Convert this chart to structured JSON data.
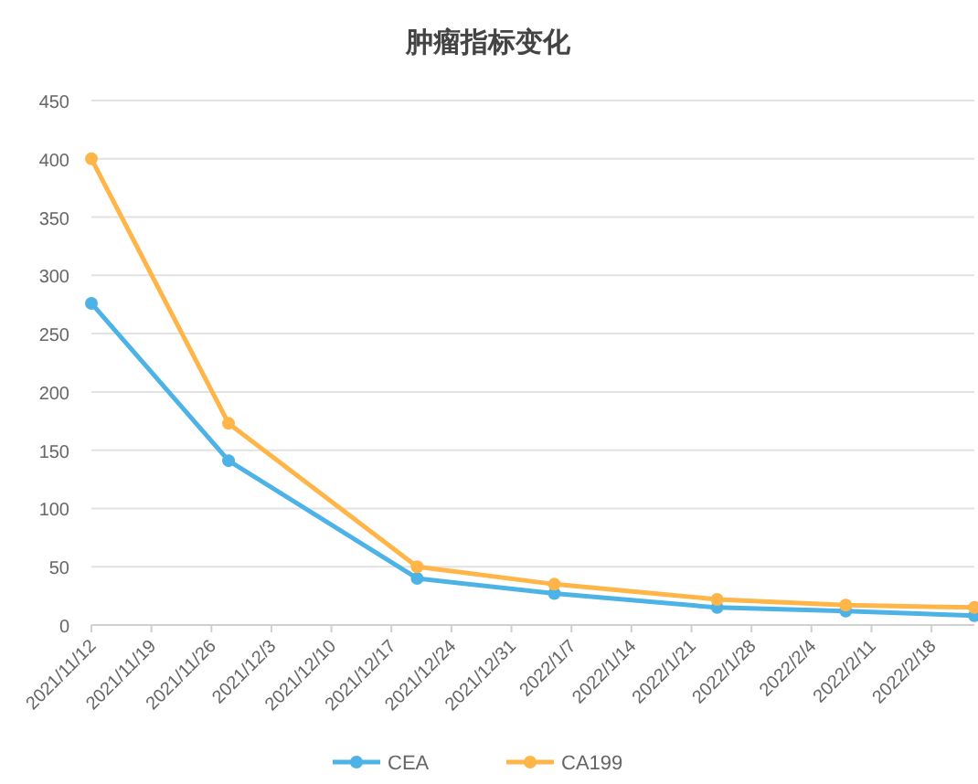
{
  "chart_data": {
    "type": "line",
    "title": "肿瘤指标变化",
    "x": [
      "2021-11-12",
      "2021-11-28",
      "2021-12-20",
      "2022-01-05",
      "2022-01-24",
      "2022-02-08",
      "2022-02-23"
    ],
    "series": [
      {
        "name": "CEA",
        "color": "#4db3e6",
        "values": [
          276,
          141,
          40,
          27,
          15,
          12,
          8
        ]
      },
      {
        "name": "CA199",
        "color": "#ffb547",
        "values": [
          400,
          173,
          50,
          35,
          22,
          17,
          15
        ]
      }
    ],
    "xlim": [
      "2021-11-12",
      "2022-02-23"
    ],
    "xticks": [
      {
        "value": "2021-11-12",
        "label": "2021/11/12"
      },
      {
        "value": "2021-11-19",
        "label": "2021/11/19"
      },
      {
        "value": "2021-11-26",
        "label": "2021/11/26"
      },
      {
        "value": "2021-12-03",
        "label": "2021/12/3"
      },
      {
        "value": "2021-12-10",
        "label": "2021/12/10"
      },
      {
        "value": "2021-12-17",
        "label": "2021/12/17"
      },
      {
        "value": "2021-12-24",
        "label": "2021/12/24"
      },
      {
        "value": "2021-12-31",
        "label": "2021/12/31"
      },
      {
        "value": "2022-01-07",
        "label": "2022/1/7"
      },
      {
        "value": "2022-01-14",
        "label": "2022/1/14"
      },
      {
        "value": "2022-01-21",
        "label": "2022/1/21"
      },
      {
        "value": "2022-01-28",
        "label": "2022/1/28"
      },
      {
        "value": "2022-02-04",
        "label": "2022/2/4"
      },
      {
        "value": "2022-02-11",
        "label": "2022/2/11"
      },
      {
        "value": "2022-02-18",
        "label": "2022/2/18"
      }
    ],
    "ylim": [
      0,
      450
    ],
    "yticks": [
      0,
      50,
      100,
      150,
      200,
      250,
      300,
      350,
      400,
      450
    ],
    "grid": "y",
    "legend": "bottom",
    "marker": "circle",
    "line_style": "solid"
  }
}
